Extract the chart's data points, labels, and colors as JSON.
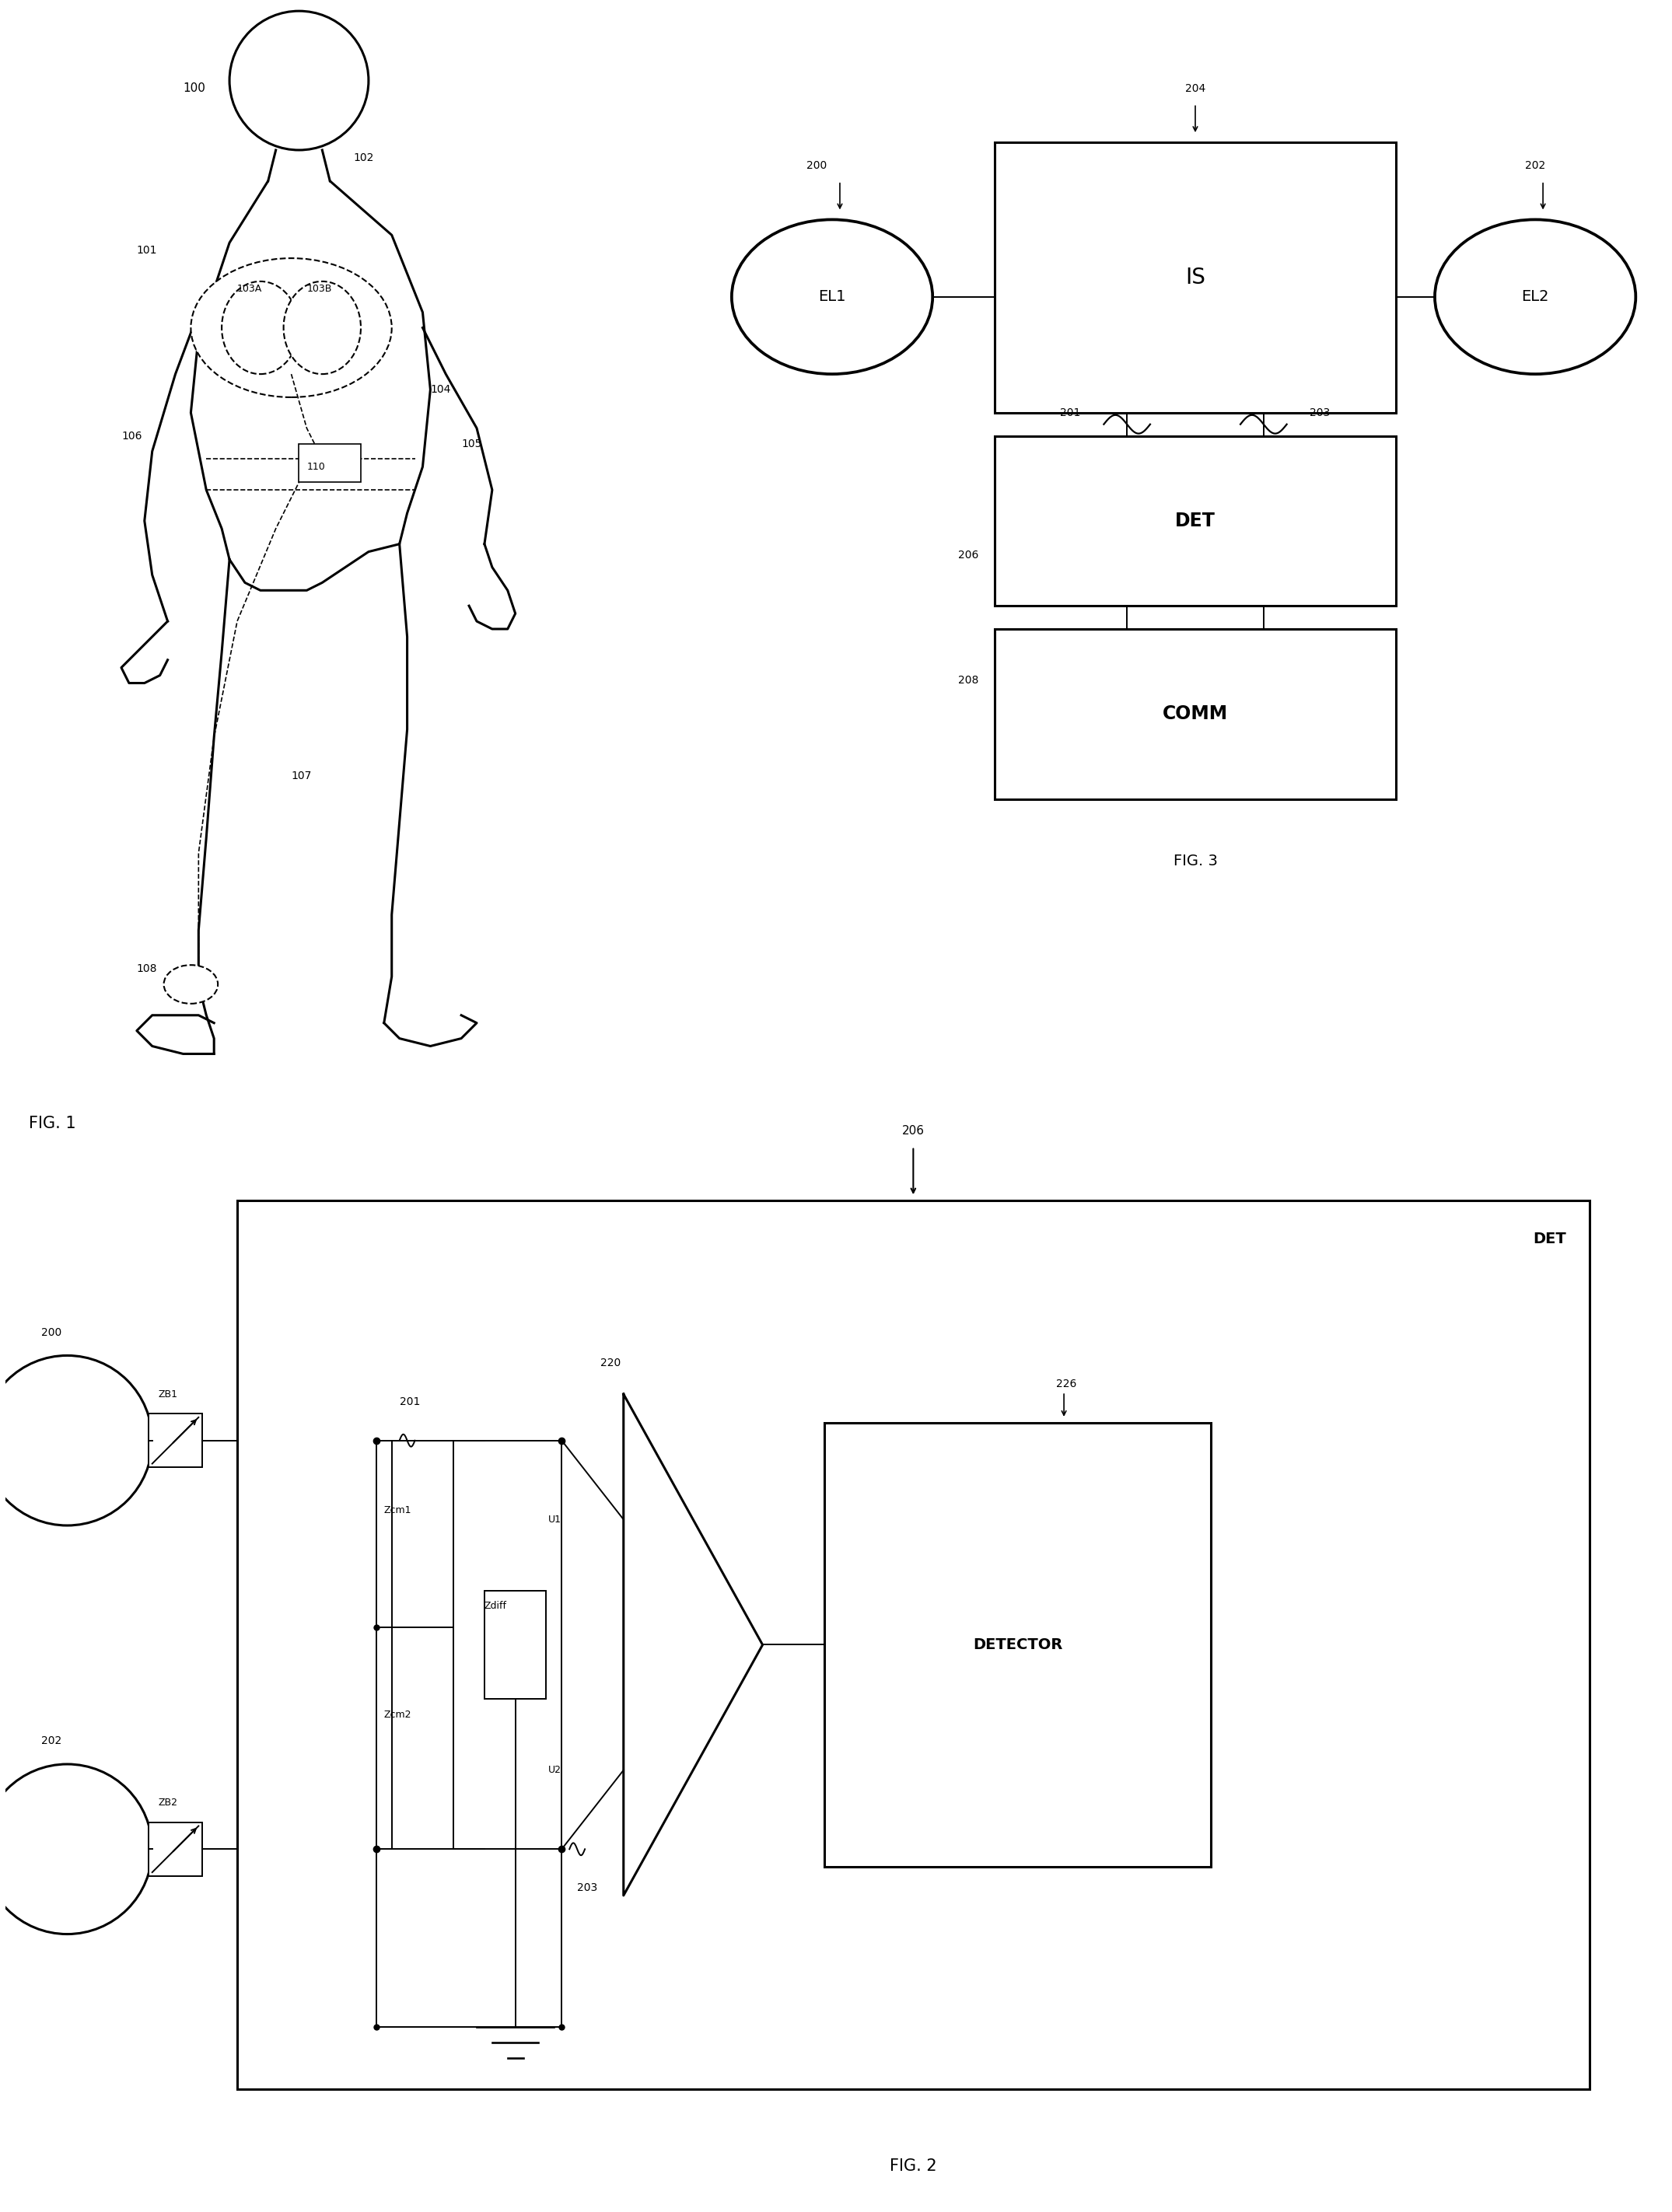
{
  "bg_color": "#ffffff",
  "line_color": "#000000",
  "fig_width": 21.5,
  "fig_height": 28.45,
  "fig1_label": "FIG. 1",
  "fig2_label": "FIG. 2",
  "fig3_label": "FIG. 3"
}
